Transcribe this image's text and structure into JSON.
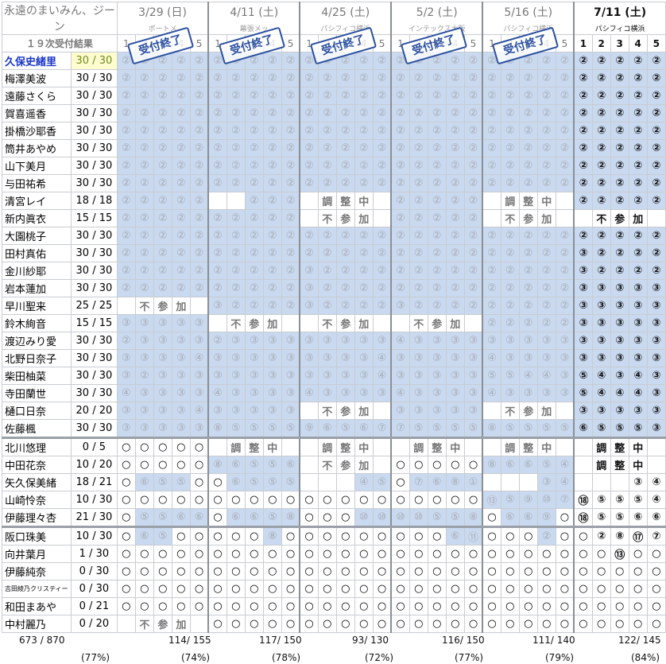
{
  "title_small": "永遠のまいみん、ジーン",
  "title_main": "１９次受付結果",
  "events": [
    {
      "date": "3/29 (日)",
      "venue": "ポートメ"
    },
    {
      "date": "4/11 (土)",
      "venue": "幕張メッ"
    },
    {
      "date": "4/25 (土)",
      "venue": "パシフィコ横浜"
    },
    {
      "date": "5/2 (土)",
      "venue": "インテックス大阪"
    },
    {
      "date": "5/16 (土)",
      "venue": "パシフィコ横浜"
    },
    {
      "date": "7/11 (土)",
      "venue": "パシフィコ横浜"
    }
  ],
  "part_labels": [
    "1",
    "2",
    "3",
    "4",
    "5"
  ],
  "stamp_text": "受付終了",
  "rows": [
    {
      "name": "久保史緒里",
      "score": "30 / 30",
      "hl": 1,
      "ev": [
        "22222",
        "22222",
        "22222",
        "22222",
        "22222",
        "22222"
      ]
    },
    {
      "name": "梅澤美波",
      "score": "30 / 30",
      "ev": [
        "22222",
        "22222",
        "22222",
        "22222",
        "22222",
        "22222"
      ]
    },
    {
      "name": "遠藤さくら",
      "score": "30 / 30",
      "ev": [
        "22222",
        "22222",
        "22222",
        "22222",
        "22222",
        "22222"
      ]
    },
    {
      "name": "賀喜遥香",
      "score": "30 / 30",
      "ev": [
        "22222",
        "22222",
        "22222",
        "22222",
        "22222",
        "22222"
      ]
    },
    {
      "name": "掛橋沙耶香",
      "score": "30 / 30",
      "ev": [
        "22222",
        "22222",
        "22222",
        "22222",
        "22222",
        "22222"
      ]
    },
    {
      "name": "筒井あやめ",
      "score": "30 / 30",
      "ev": [
        "22222",
        "22222",
        "22222",
        "22222",
        "22222",
        "22222"
      ]
    },
    {
      "name": "山下美月",
      "score": "30 / 30",
      "ev": [
        "22222",
        "22222",
        "22222",
        "22222",
        "22222",
        "22222"
      ]
    },
    {
      "name": "与田祐希",
      "score": "30 / 30",
      "ev": [
        "22222",
        "22222",
        "22222",
        "22222",
        "22222",
        "22222"
      ]
    },
    {
      "name": "清宮レイ",
      "score": "18 / 18",
      "ev": [
        "22222",
        "__222",
        "T調整中",
        "22222",
        "T調整中",
        "22222"
      ]
    },
    {
      "name": "新内眞衣",
      "score": "15 / 15",
      "ev": [
        "22222",
        "22222",
        "T不参加",
        "22222",
        "T不参加",
        "T不参加"
      ]
    },
    {
      "name": "大園桃子",
      "score": "30 / 30",
      "ev": [
        "22222",
        "22222",
        "22222",
        "22222",
        "22222",
        "22222"
      ]
    },
    {
      "name": "田村真佑",
      "score": "30 / 30",
      "ev": [
        "22222",
        "22222",
        "22222",
        "22222",
        "22222",
        "32222"
      ]
    },
    {
      "name": "金川紗耶",
      "score": "30 / 30",
      "ev": [
        "22222",
        "22222",
        "32222",
        "22222",
        "22222",
        "32222"
      ]
    },
    {
      "name": "岩本蓮加",
      "score": "30 / 30",
      "ev": [
        "22222",
        "22222",
        "32222",
        "22222",
        "22222",
        "33333"
      ]
    },
    {
      "name": "早川聖来",
      "score": "25 / 25",
      "ev": [
        "T不参加",
        "32222",
        "32222",
        "32222",
        "22222",
        "33333"
      ]
    },
    {
      "name": "鈴木絢音",
      "score": "15 / 15",
      "ev": [
        "33333",
        "T不参加",
        "T不参加",
        "T不参加",
        "22222",
        "33333"
      ]
    },
    {
      "name": "渡辺みり愛",
      "score": "30 / 30",
      "ev": [
        "23333",
        "23333",
        "33333",
        "43333",
        "33333",
        "33333"
      ]
    },
    {
      "name": "北野日奈子",
      "score": "30 / 30",
      "ev": [
        "33334",
        "33333",
        "33334",
        "33333",
        "43333",
        "33333"
      ]
    },
    {
      "name": "柴田柚菜",
      "score": "30 / 30",
      "ev": [
        "32333",
        "33333",
        "33334",
        "33333",
        "55443",
        "54343"
      ]
    },
    {
      "name": "寺田蘭世",
      "score": "30 / 30",
      "ev": [
        "43333",
        "43333",
        "43333",
        "43333",
        "43333",
        "54443"
      ]
    },
    {
      "name": "樋口日奈",
      "score": "20 / 20",
      "ev": [
        "33334",
        "33333",
        "T不参加",
        "33333",
        "T不参加",
        "33333"
      ]
    },
    {
      "name": "佐藤楓",
      "score": "30 / 30",
      "ev": [
        "33333",
        "85555",
        "96567",
        "75555",
        "85555",
        "65553"
      ]
    },
    {
      "name": "北川悠理",
      "score": "0 / 5",
      "gap": "A",
      "ev": [
        "OOOOO",
        "T調整中",
        "T調整中",
        "T調整中",
        "T調整中",
        "T調整中"
      ]
    },
    {
      "name": "中田花奈",
      "score": "10 / 20",
      "ev": [
        "OOOOO",
        "86556",
        "T不参加",
        "OOOOO",
        "8665④",
        "T調整中"
      ]
    },
    {
      "name": "矢久保美緒",
      "score": "18 / 21",
      "ev": [
        "O655O",
        "O6555",
        "___45",
        "O7681",
        "___34",
        "___34"
      ]
    },
    {
      "name": "山崎怜奈",
      "score": "10 / 30",
      "ev": [
        "OOOOO",
        "OOOOO",
        "OOOOO",
        "OOOOO",
        "D5907",
        "H5554"
      ]
    },
    {
      "name": "伊藤理々杏",
      "score": "21 / 30",
      "ev": [
        "O5566",
        "O6658",
        "OOOB0",
        "B0558",
        "O669O",
        "I5566"
      ]
    },
    {
      "name": "阪口珠美",
      "score": "10 / 30",
      "gap": "B",
      "ev": [
        "O65OO",
        "OOO8O",
        "OOOOO",
        "OOO6K",
        "OOO2O",
        "O2807"
      ]
    },
    {
      "name": "向井葉月",
      "score": "1 / 30",
      "ev": [
        "OOOOO",
        "OOOOO",
        "OOOOO",
        "OOOOO",
        "OOOOO",
        "OODOO"
      ]
    },
    {
      "name": "伊藤純奈",
      "score": "0 / 30",
      "ev": [
        "OOOOO",
        "OOOOO",
        "OOOOO",
        "OOOOO",
        "OOOOO",
        "OOOOO"
      ]
    },
    {
      "name": "吉田綾乃クリスティー",
      "score": "0 / 30",
      "small": 1,
      "ev": [
        "OOOOO",
        "OOOOO",
        "OOOOO",
        "OOOOO",
        "OOOOO",
        "OOOOO"
      ]
    },
    {
      "name": "和田まあや",
      "score": "0 / 21",
      "ev": [
        "OOOOO",
        "OOOOO",
        "OOOOO",
        "OOOOO",
        "OOOOO",
        "OOOOO"
      ]
    },
    {
      "name": "中村麗乃",
      "score": "0 / 20",
      "ev": [
        "T不参加",
        "OOOOO",
        "OOOOO",
        "OOOOO",
        "OOOOO",
        "OOOOO"
      ]
    }
  ],
  "totals": {
    "overall": "673 / 870",
    "overall_pct": "(77%)",
    "events": [
      {
        "count": "114/ 155",
        "pct": "(74%)"
      },
      {
        "count": "117/ 150",
        "pct": "(78%)"
      },
      {
        "count": "93/ 130",
        "pct": "(72%)"
      },
      {
        "count": "116/ 150",
        "pct": "(77%)"
      },
      {
        "count": "111/ 140",
        "pct": "(79%)"
      },
      {
        "count": "122/ 145",
        "pct": "(84%)"
      }
    ]
  },
  "colors": {
    "highlight": "#c9d9ef",
    "stamp": "#2a4fa0",
    "title": "#6a3aa0"
  }
}
